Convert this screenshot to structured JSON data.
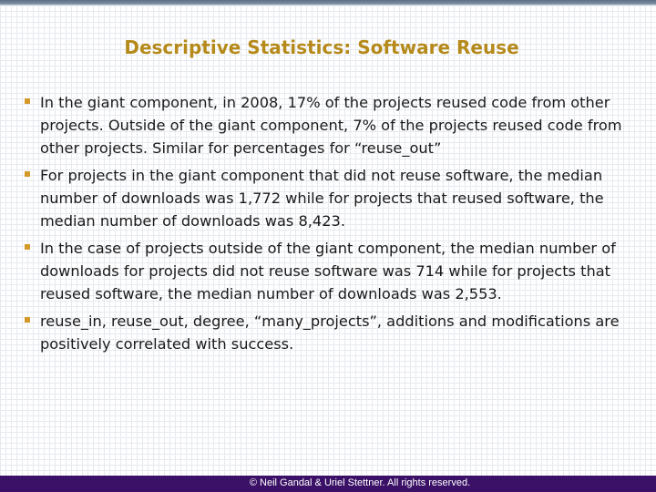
{
  "slide": {
    "title": "Descriptive Statistics: Software Reuse",
    "bullets": [
      "In the giant component, in 2008, 17% of the projects reused code from other projects.  Outside of the giant component, 7% of the projects reused code from other projects.  Similar for percentages for “reuse_out”",
      "For projects in the giant component that did not reuse software, the median number of downloads was 1,772 while for projects that reused software, the median number of downloads was 8,423.",
      "In the case of projects outside of the giant component, the median number of downloads for projects did not reuse software was 714 while for projects that reused software, the median number of downloads was 2,553.",
      "reuse_in, reuse_out, degree, “many_projects”, additions and modifications are positively correlated with success."
    ],
    "footer": "© Neil Gandal & Uriel Stettner. All rights reserved."
  },
  "colors": {
    "title": "#b58a1a",
    "bullet_marker": "#d39a2a",
    "footer_bar": "#3a1166",
    "body_text": "#1a1a1a"
  }
}
